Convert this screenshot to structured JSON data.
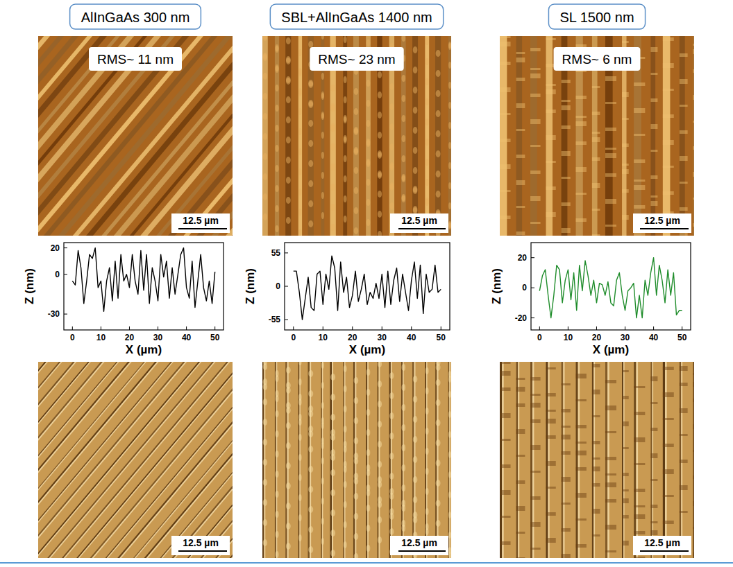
{
  "chart_data": [
    {
      "type": "line",
      "title": "AlInGaAs 300 nm",
      "annotations": [
        "RMS~ 11 nm",
        "12.5 µm"
      ],
      "x_label": "X (µm)",
      "y_label": "Z (nm)",
      "color": "#000000",
      "x": [
        0,
        1,
        2,
        3,
        4,
        5,
        6,
        7,
        8,
        9,
        10,
        11,
        12,
        13,
        14,
        15,
        16,
        17,
        18,
        19,
        20,
        21,
        22,
        23,
        24,
        25,
        26,
        27,
        28,
        29,
        30,
        31,
        32,
        33,
        34,
        35,
        36,
        37,
        38,
        39,
        40,
        41,
        42,
        43,
        44,
        45,
        46,
        47,
        48,
        49,
        50
      ],
      "values": [
        -5,
        -8,
        18,
        5,
        -22,
        -5,
        15,
        12,
        20,
        -10,
        -5,
        -28,
        -5,
        5,
        -20,
        10,
        -18,
        15,
        -5,
        0,
        -10,
        15,
        -5,
        -15,
        18,
        -12,
        15,
        -22,
        5,
        -5,
        -20,
        15,
        -2,
        10,
        -18,
        5,
        -15,
        0,
        15,
        20,
        -10,
        -18,
        10,
        -25,
        -5,
        15,
        -10,
        -20,
        -5,
        -22,
        2
      ],
      "xlim": [
        -3,
        53
      ],
      "ylim": [
        -42,
        24
      ],
      "xticks": [
        0,
        10,
        20,
        30,
        40,
        50
      ],
      "yticks": [
        -30,
        0,
        20
      ]
    },
    {
      "type": "line",
      "title": "SBL+AlInGaAs 1400 nm",
      "annotations": [
        "RMS~ 23 nm",
        "12.5 µm"
      ],
      "x_label": "X (µm)",
      "y_label": "Z (nm)",
      "color": "#000000",
      "x": [
        0,
        1,
        2,
        3,
        4,
        5,
        6,
        7,
        8,
        9,
        10,
        11,
        12,
        13,
        14,
        15,
        16,
        17,
        18,
        19,
        20,
        21,
        22,
        23,
        24,
        25,
        26,
        27,
        28,
        29,
        30,
        31,
        32,
        33,
        34,
        35,
        36,
        37,
        38,
        39,
        40,
        41,
        42,
        43,
        44,
        45,
        46,
        47,
        48,
        49,
        50
      ],
      "values": [
        25,
        25,
        -10,
        -55,
        -20,
        15,
        -35,
        -40,
        20,
        25,
        -30,
        20,
        -5,
        50,
        30,
        -40,
        40,
        -10,
        15,
        -35,
        -15,
        25,
        -25,
        -5,
        20,
        -30,
        -10,
        -20,
        5,
        -20,
        20,
        -35,
        25,
        -30,
        10,
        30,
        -25,
        20,
        -10,
        -40,
        10,
        40,
        -20,
        35,
        -45,
        20,
        -10,
        -5,
        35,
        -10,
        -5
      ],
      "xlim": [
        -3,
        53
      ],
      "ylim": [
        -72,
        72
      ],
      "xticks": [
        0,
        10,
        20,
        30,
        40,
        50
      ],
      "yticks": [
        -55,
        0,
        55
      ]
    },
    {
      "type": "line",
      "title": "SL  1500 nm",
      "annotations": [
        "RMS~ 6 nm",
        "12.5 µm"
      ],
      "x_label": "X (µm)",
      "y_label": "Z (nm)",
      "color": "#1e8c2a",
      "x": [
        0,
        1,
        2,
        3,
        4,
        5,
        6,
        7,
        8,
        9,
        10,
        11,
        12,
        13,
        14,
        15,
        16,
        17,
        18,
        19,
        20,
        21,
        22,
        23,
        24,
        25,
        26,
        27,
        28,
        29,
        30,
        31,
        32,
        33,
        34,
        35,
        36,
        37,
        38,
        39,
        40,
        41,
        42,
        43,
        44,
        45,
        46,
        47,
        48,
        49,
        50
      ],
      "values": [
        -2,
        8,
        12,
        -5,
        -20,
        -5,
        15,
        12,
        -10,
        5,
        12,
        -8,
        10,
        -15,
        15,
        -2,
        18,
        8,
        -5,
        5,
        -10,
        3,
        2,
        -5,
        4,
        -10,
        -12,
        5,
        10,
        -5,
        -15,
        -2,
        0,
        3,
        -20,
        -5,
        -20,
        5,
        -5,
        10,
        20,
        -5,
        15,
        5,
        -10,
        12,
        -5,
        10,
        -18,
        -15,
        -15
      ],
      "xlim": [
        -3,
        53
      ],
      "ylim": [
        -28,
        30
      ],
      "xticks": [
        0,
        10,
        20,
        30,
        40,
        50
      ],
      "yticks": [
        -20,
        0,
        20
      ]
    }
  ]
}
